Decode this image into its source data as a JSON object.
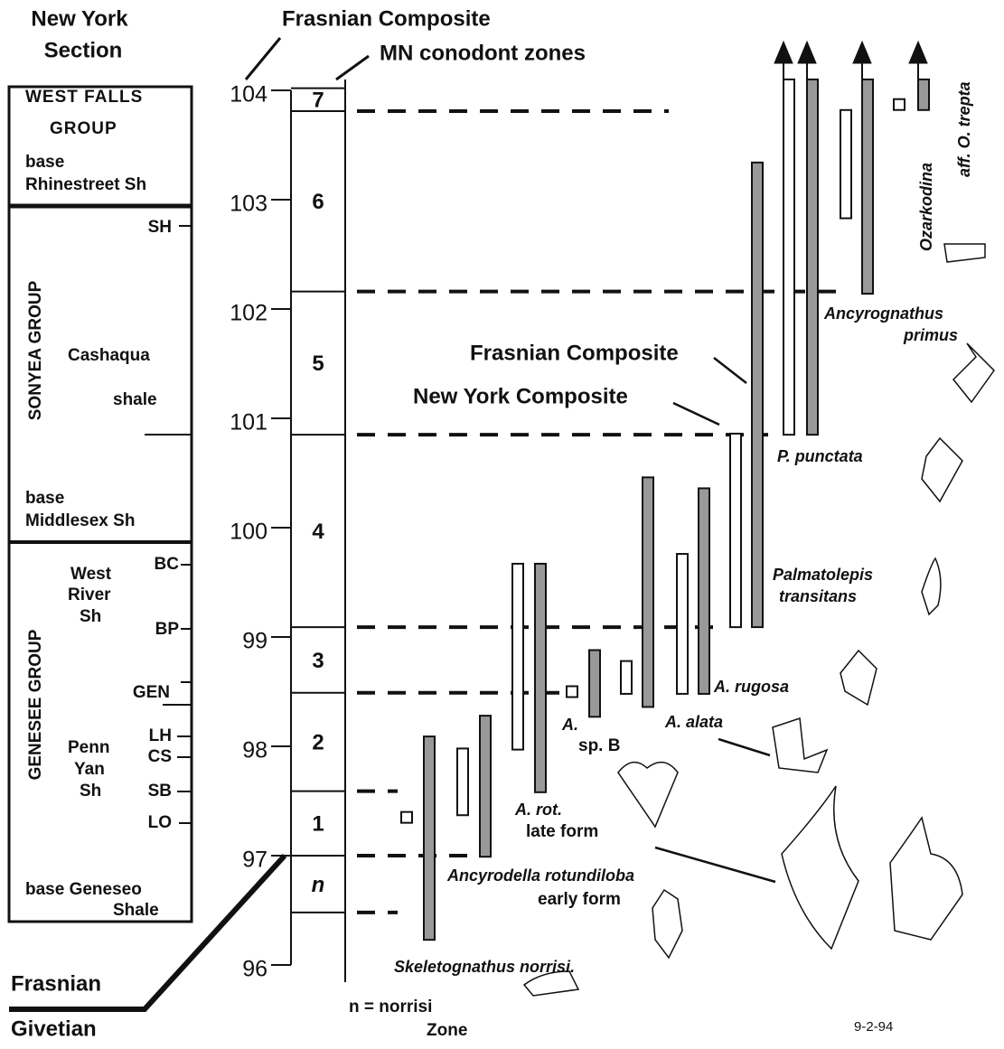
{
  "header": {
    "section_title": [
      "New York",
      "Section"
    ],
    "composite_title": "Frasnian Composite",
    "zones_title": "MN conodont zones"
  },
  "left_column": {
    "units": [
      "WEST FALLS",
      "GROUP",
      "base",
      "Rhinestreet  Sh",
      "SONYEA   GROUP",
      "Cashaqua",
      "shale",
      "base",
      "Middlesex  Sh",
      "West",
      "River",
      "Sh",
      "GENESEE   GROUP",
      "Penn",
      "Yan",
      "Sh",
      "base  Geneseo",
      "Shale"
    ],
    "markers": [
      "SH",
      "BC",
      "BP",
      "GEN",
      "LH",
      "CS",
      "SB",
      "LO"
    ]
  },
  "scale": {
    "ticks": [
      96,
      97,
      98,
      99,
      100,
      101,
      102,
      103,
      104
    ]
  },
  "zones": {
    "labels": [
      "n",
      "1",
      "2",
      "3",
      "4",
      "5",
      "6",
      "7"
    ],
    "boundaries": [
      96.48,
      97.0,
      97.59,
      98.49,
      99.09,
      100.85,
      102.16,
      103.81,
      104.02
    ]
  },
  "ranges": [
    {
      "fill": "#999",
      "lo": 96.23,
      "hi": 98.09
    },
    {
      "fill": "#fff",
      "lo": 97.37,
      "hi": 97.98
    },
    {
      "fill": "#999",
      "lo": 96.99,
      "hi": 98.28
    },
    {
      "fill": "#fff",
      "lo": 97.97,
      "hi": 99.67
    },
    {
      "fill": "#999",
      "lo": 97.58,
      "hi": 99.67
    },
    {
      "fill": "#999",
      "lo": 98.27,
      "hi": 98.88
    },
    {
      "fill": "#fff",
      "lo": 98.48,
      "hi": 98.78
    },
    {
      "fill": "#999",
      "lo": 98.36,
      "hi": 100.46
    },
    {
      "fill": "#fff",
      "lo": 98.48,
      "hi": 99.76
    },
    {
      "fill": "#999",
      "lo": 98.48,
      "hi": 100.36
    },
    {
      "fill": "#fff",
      "lo": 99.09,
      "hi": 100.86
    },
    {
      "fill": "#999",
      "lo": 99.09,
      "hi": 103.34
    },
    {
      "fill": "#fff",
      "lo": 100.85,
      "hi": 104.1,
      "arrow": true
    },
    {
      "fill": "#999",
      "lo": 100.85,
      "hi": 104.1,
      "arrow": true
    },
    {
      "fill": "#fff",
      "lo": 102.83,
      "hi": 103.82
    },
    {
      "fill": "#999",
      "lo": 102.14,
      "hi": 104.1,
      "arrow": true
    },
    {
      "fill": "#999",
      "lo": 103.82,
      "hi": 104.1,
      "arrow": true
    }
  ],
  "points": [
    97.35,
    98.5,
    103.87
  ],
  "labels": {
    "skeletognathus": "Skeletognathus  norrisi.",
    "rotundiloba": "Ancyrodella  rotundiloba",
    "early_form": "early  form",
    "a_rot": "A.  rot.",
    "late_form": "late  form",
    "a_sp": "A.",
    "sp_b": "sp.  B",
    "alata": "A.  alata",
    "rugosa": "A.  rugosa",
    "palmatolepis": "Palmatolepis",
    "transitans": "transitans",
    "punctata": "P.  punctata",
    "ny_composite": "New  York  Composite",
    "fr_composite": "Frasnian  Composite",
    "ancyrognathus": "Ancyrognathus",
    "primus": "primus",
    "ozarkodina": "Ozarkodina",
    "trepta": "aff.  O.  trepta",
    "norrisi_zone": "n  =  norrisi",
    "zone": "Zone",
    "date": "9-2-94",
    "frasnian": "Frasnian",
    "givetian": "Givetian"
  }
}
